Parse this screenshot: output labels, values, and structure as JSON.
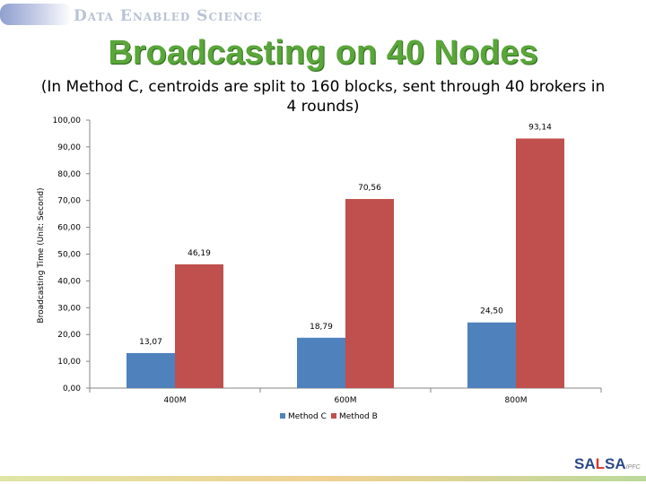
{
  "header": {
    "brand": "Data Enabled Science"
  },
  "slide": {
    "title": "Broadcasting on 40 Nodes",
    "subtitle": "(In Method C, centroids are split to 160 blocks, sent through 40 brokers in 4 rounds)"
  },
  "colors": {
    "method_c": "#4f81bd",
    "method_b": "#c0504d",
    "title": "#5aa63a"
  },
  "chart_data": {
    "type": "bar",
    "categories": [
      "400M",
      "600M",
      "800M"
    ],
    "series": [
      {
        "name": "Method C",
        "values": [
          13.07,
          18.79,
          24.5
        ],
        "labels": [
          "13,07",
          "18,79",
          "24,50"
        ]
      },
      {
        "name": "Method B",
        "values": [
          46.19,
          70.56,
          93.14
        ],
        "labels": [
          "46,19",
          "70,56",
          "93,14"
        ]
      }
    ],
    "ylabel": "Broadcasting Time (Unit: Second)",
    "ylim": [
      0,
      100
    ],
    "yticks": [
      "0,00",
      "10,00",
      "20,00",
      "30,00",
      "40,00",
      "50,00",
      "60,00",
      "70,00",
      "80,00",
      "90,00",
      "100,00"
    ],
    "grid": false,
    "legend": "bottom"
  },
  "footer": {
    "logo_left": "SA",
    "logo_mid": "L",
    "logo_right": "SA",
    "logo_suffix": "IPFC"
  }
}
